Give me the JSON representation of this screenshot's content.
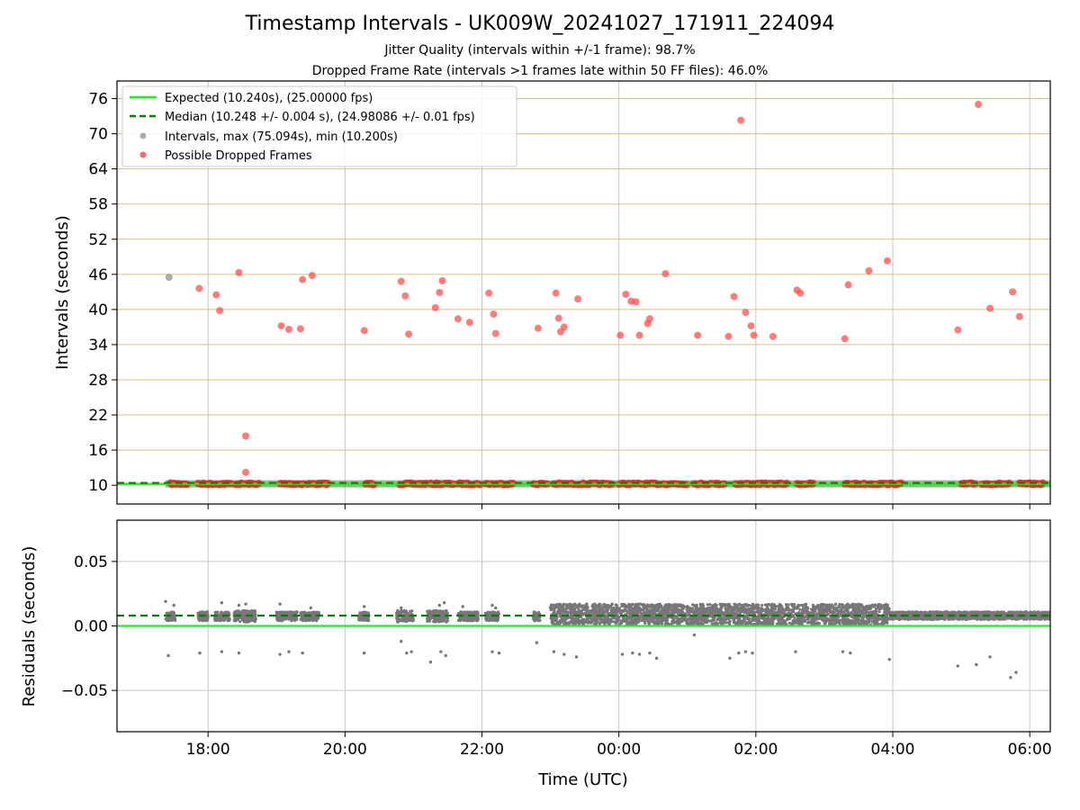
{
  "chart_data": {
    "type": "scatter",
    "title": "Timestamp Intervals - UK009W_20241027_171911_224094",
    "subtitle_lines": [
      "Jitter Quality (intervals within +/-1 frame): 98.7%",
      "Dropped Frame Rate (intervals >1 frames late within 50 FF files): 46.0%"
    ],
    "xlabel": "Time (UTC)",
    "x_range_hours": [
      16.67,
      30.3
    ],
    "x_ticks": [
      {
        "hour": 18,
        "label": "18:00"
      },
      {
        "hour": 20,
        "label": "20:00"
      },
      {
        "hour": 22,
        "label": "22:00"
      },
      {
        "hour": 24,
        "label": "00:00"
      },
      {
        "hour": 26,
        "label": "02:00"
      },
      {
        "hour": 28,
        "label": "04:00"
      },
      {
        "hour": 30,
        "label": "06:00"
      }
    ],
    "panels": {
      "intervals": {
        "ylabel": "Intervals (seconds)",
        "ylim": [
          6.8,
          79
        ],
        "yticks": [
          10,
          16,
          22,
          28,
          34,
          40,
          46,
          52,
          58,
          64,
          70,
          76
        ],
        "grid": "horizontal-tan",
        "legend": {
          "placement": "top-left",
          "entries": [
            {
              "label": "Expected (10.240s), (25.00000 fps)",
              "style": "solid-line",
              "color": "#22ee22"
            },
            {
              "label": "Median (10.248 +/- 0.004 s), (24.98086 +/- 0.01 fps)",
              "style": "dashed-line",
              "color": "#117711"
            },
            {
              "label": "Intervals, max (75.094s), min (10.200s)",
              "style": "marker",
              "color": "#999999"
            },
            {
              "label": "Possible Dropped Frames",
              "style": "marker",
              "color": "#ff4444"
            }
          ]
        },
        "expected_value": 10.24,
        "median_value": 10.248,
        "baseline_dropped_segments": [
          [
            17.45,
            17.7
          ],
          [
            17.85,
            18.08
          ],
          [
            18.1,
            18.35
          ],
          [
            18.4,
            18.75
          ],
          [
            19.05,
            19.4
          ],
          [
            19.45,
            19.75
          ],
          [
            20.3,
            20.42
          ],
          [
            20.8,
            21.2
          ],
          [
            21.25,
            21.6
          ],
          [
            21.65,
            21.98
          ],
          [
            22.05,
            22.45
          ],
          [
            22.75,
            22.95
          ],
          [
            23.05,
            23.35
          ],
          [
            23.4,
            23.9
          ],
          [
            24.0,
            24.6
          ],
          [
            24.65,
            25.0
          ],
          [
            25.1,
            25.35
          ],
          [
            25.4,
            25.55
          ],
          [
            25.7,
            26.2
          ],
          [
            26.25,
            26.45
          ],
          [
            26.6,
            26.85
          ],
          [
            27.3,
            27.6
          ],
          [
            27.65,
            27.85
          ],
          [
            27.9,
            28.12
          ],
          [
            29.0,
            29.2
          ],
          [
            29.3,
            29.7
          ],
          [
            29.85,
            30.2
          ]
        ],
        "grey_points": [
          [
            17.43,
            45.5
          ]
        ],
        "dropped_points": [
          [
            17.87,
            43.6
          ],
          [
            18.12,
            42.5
          ],
          [
            18.17,
            39.8
          ],
          [
            18.45,
            46.3
          ],
          [
            18.55,
            18.4
          ],
          [
            18.55,
            12.2
          ],
          [
            19.07,
            37.2
          ],
          [
            19.18,
            36.6
          ],
          [
            19.35,
            36.7
          ],
          [
            19.38,
            45.1
          ],
          [
            19.52,
            45.8
          ],
          [
            20.28,
            36.4
          ],
          [
            20.82,
            44.8
          ],
          [
            20.88,
            42.3
          ],
          [
            20.93,
            35.8
          ],
          [
            21.32,
            40.3
          ],
          [
            21.38,
            42.9
          ],
          [
            21.42,
            44.9
          ],
          [
            21.65,
            38.4
          ],
          [
            21.82,
            37.8
          ],
          [
            22.1,
            42.8
          ],
          [
            22.17,
            39.2
          ],
          [
            22.2,
            35.9
          ],
          [
            22.82,
            36.8
          ],
          [
            23.08,
            42.8
          ],
          [
            23.12,
            38.5
          ],
          [
            23.15,
            36.2
          ],
          [
            23.2,
            37.0
          ],
          [
            23.4,
            41.8
          ],
          [
            24.02,
            35.6
          ],
          [
            24.1,
            42.6
          ],
          [
            24.18,
            41.4
          ],
          [
            24.25,
            41.3
          ],
          [
            24.3,
            35.6
          ],
          [
            24.42,
            37.6
          ],
          [
            24.45,
            38.4
          ],
          [
            24.68,
            46.1
          ],
          [
            25.15,
            35.6
          ],
          [
            25.6,
            35.4
          ],
          [
            25.68,
            42.2
          ],
          [
            25.78,
            72.3
          ],
          [
            25.85,
            39.5
          ],
          [
            25.93,
            37.2
          ],
          [
            25.97,
            35.6
          ],
          [
            26.25,
            35.4
          ],
          [
            26.6,
            43.3
          ],
          [
            26.65,
            42.8
          ],
          [
            27.3,
            35.0
          ],
          [
            27.35,
            44.2
          ],
          [
            27.65,
            46.6
          ],
          [
            27.92,
            48.3
          ],
          [
            28.95,
            36.5
          ],
          [
            29.25,
            75.0
          ],
          [
            29.42,
            40.2
          ],
          [
            29.75,
            43.0
          ],
          [
            29.85,
            38.8
          ]
        ]
      },
      "residuals": {
        "ylabel": "Residuals (seconds)",
        "ylim": [
          -0.082,
          0.082
        ],
        "yticks": [
          {
            "value": 0.05,
            "label": "0.05"
          },
          {
            "value": 0.0,
            "label": "0.00"
          },
          {
            "value": -0.05,
            "label": "−0.05"
          }
        ],
        "grid": "both-grey",
        "expected_residual": 0.0,
        "median_residual": 0.008,
        "outliers": [
          [
            17.42,
            -0.023
          ],
          [
            17.88,
            -0.021
          ],
          [
            18.2,
            -0.02
          ],
          [
            18.45,
            -0.021
          ],
          [
            19.05,
            -0.022
          ],
          [
            19.18,
            -0.02
          ],
          [
            19.38,
            -0.021
          ],
          [
            20.28,
            -0.021
          ],
          [
            20.82,
            -0.012
          ],
          [
            20.9,
            -0.021
          ],
          [
            20.97,
            -0.02
          ],
          [
            21.25,
            -0.028
          ],
          [
            21.4,
            -0.02
          ],
          [
            21.47,
            -0.023
          ],
          [
            22.15,
            -0.02
          ],
          [
            22.25,
            -0.021
          ],
          [
            22.8,
            -0.013
          ],
          [
            23.05,
            -0.02
          ],
          [
            23.2,
            -0.022
          ],
          [
            23.38,
            -0.024
          ],
          [
            24.05,
            -0.022
          ],
          [
            24.2,
            -0.021
          ],
          [
            24.3,
            -0.022
          ],
          [
            24.45,
            -0.021
          ],
          [
            24.55,
            -0.025
          ],
          [
            25.1,
            -0.007
          ],
          [
            25.62,
            -0.025
          ],
          [
            25.75,
            -0.021
          ],
          [
            25.85,
            -0.02
          ],
          [
            25.95,
            -0.021
          ],
          [
            26.58,
            -0.02
          ],
          [
            27.27,
            -0.02
          ],
          [
            27.38,
            -0.021
          ],
          [
            27.95,
            -0.026
          ],
          [
            28.95,
            -0.031
          ],
          [
            29.22,
            -0.03
          ],
          [
            29.42,
            -0.024
          ],
          [
            29.72,
            -0.04
          ],
          [
            29.8,
            -0.036
          ],
          [
            17.38,
            0.019
          ],
          [
            17.5,
            0.016
          ],
          [
            18.2,
            0.018
          ],
          [
            18.45,
            0.016
          ],
          [
            18.55,
            0.017
          ],
          [
            19.05,
            0.017
          ],
          [
            19.5,
            0.014
          ],
          [
            20.28,
            0.015
          ],
          [
            20.82,
            0.014
          ],
          [
            21.38,
            0.016
          ],
          [
            21.45,
            0.018
          ],
          [
            21.72,
            0.015
          ],
          [
            22.15,
            0.016
          ],
          [
            22.2,
            0.014
          ]
        ],
        "clusters": [
          {
            "start": 17.38,
            "end": 17.52,
            "low": 0.004,
            "high": 0.011
          },
          {
            "start": 17.85,
            "end": 18.0,
            "low": 0.004,
            "high": 0.011
          },
          {
            "start": 18.1,
            "end": 18.32,
            "low": 0.004,
            "high": 0.011
          },
          {
            "start": 18.38,
            "end": 18.7,
            "low": 0.003,
            "high": 0.012
          },
          {
            "start": 19.0,
            "end": 19.3,
            "low": 0.004,
            "high": 0.011
          },
          {
            "start": 19.35,
            "end": 19.62,
            "low": 0.004,
            "high": 0.011
          },
          {
            "start": 20.2,
            "end": 20.35,
            "low": 0.004,
            "high": 0.011
          },
          {
            "start": 20.75,
            "end": 21.0,
            "low": 0.003,
            "high": 0.012
          },
          {
            "start": 21.2,
            "end": 21.5,
            "low": 0.003,
            "high": 0.012
          },
          {
            "start": 21.65,
            "end": 21.95,
            "low": 0.004,
            "high": 0.011
          },
          {
            "start": 22.05,
            "end": 22.25,
            "low": 0.004,
            "high": 0.011
          },
          {
            "start": 22.75,
            "end": 22.85,
            "low": 0.004,
            "high": 0.011
          },
          {
            "start": 23.0,
            "end": 27.95,
            "low": 0.001,
            "high": 0.017
          },
          {
            "start": 27.95,
            "end": 30.3,
            "low": 0.005,
            "high": 0.011
          }
        ]
      }
    }
  }
}
